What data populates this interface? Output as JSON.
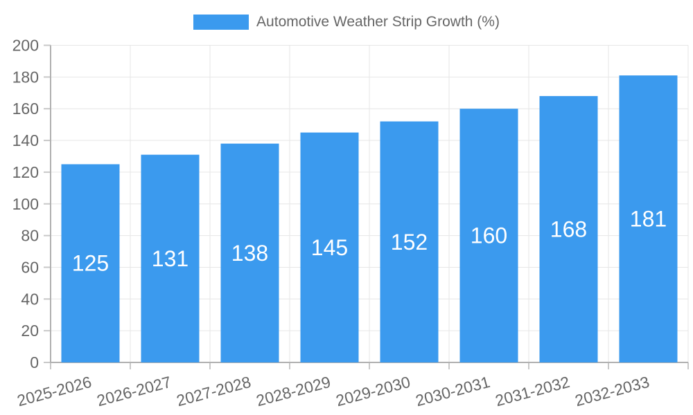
{
  "chart_data": {
    "type": "bar",
    "title": "Automotive Weather Strip Growth (%)",
    "legend": {
      "label": "Automotive Weather Strip Growth (%)",
      "position": "top"
    },
    "categories": [
      "2025-2026",
      "2026-2027",
      "2027-2028",
      "2028-2029",
      "2029-2030",
      "2030-2031",
      "2031-2032",
      "2032-2033"
    ],
    "values": [
      125,
      131,
      138,
      145,
      152,
      160,
      168,
      181
    ],
    "xlabel": "",
    "ylabel": "",
    "ylim": [
      0,
      200
    ],
    "y_ticks": [
      0,
      20,
      40,
      60,
      80,
      100,
      120,
      140,
      160,
      180,
      200
    ],
    "grid": true,
    "x_label_rotation": -15,
    "colors": {
      "bar": "#3b9aee",
      "bar_value_label": "#ffffff",
      "axis_text": "#666666",
      "gridline": "#e6e6e6",
      "axis_line": "#b0b0b0",
      "tick_mark": "#c8c8c8",
      "background": "#ffffff"
    }
  }
}
